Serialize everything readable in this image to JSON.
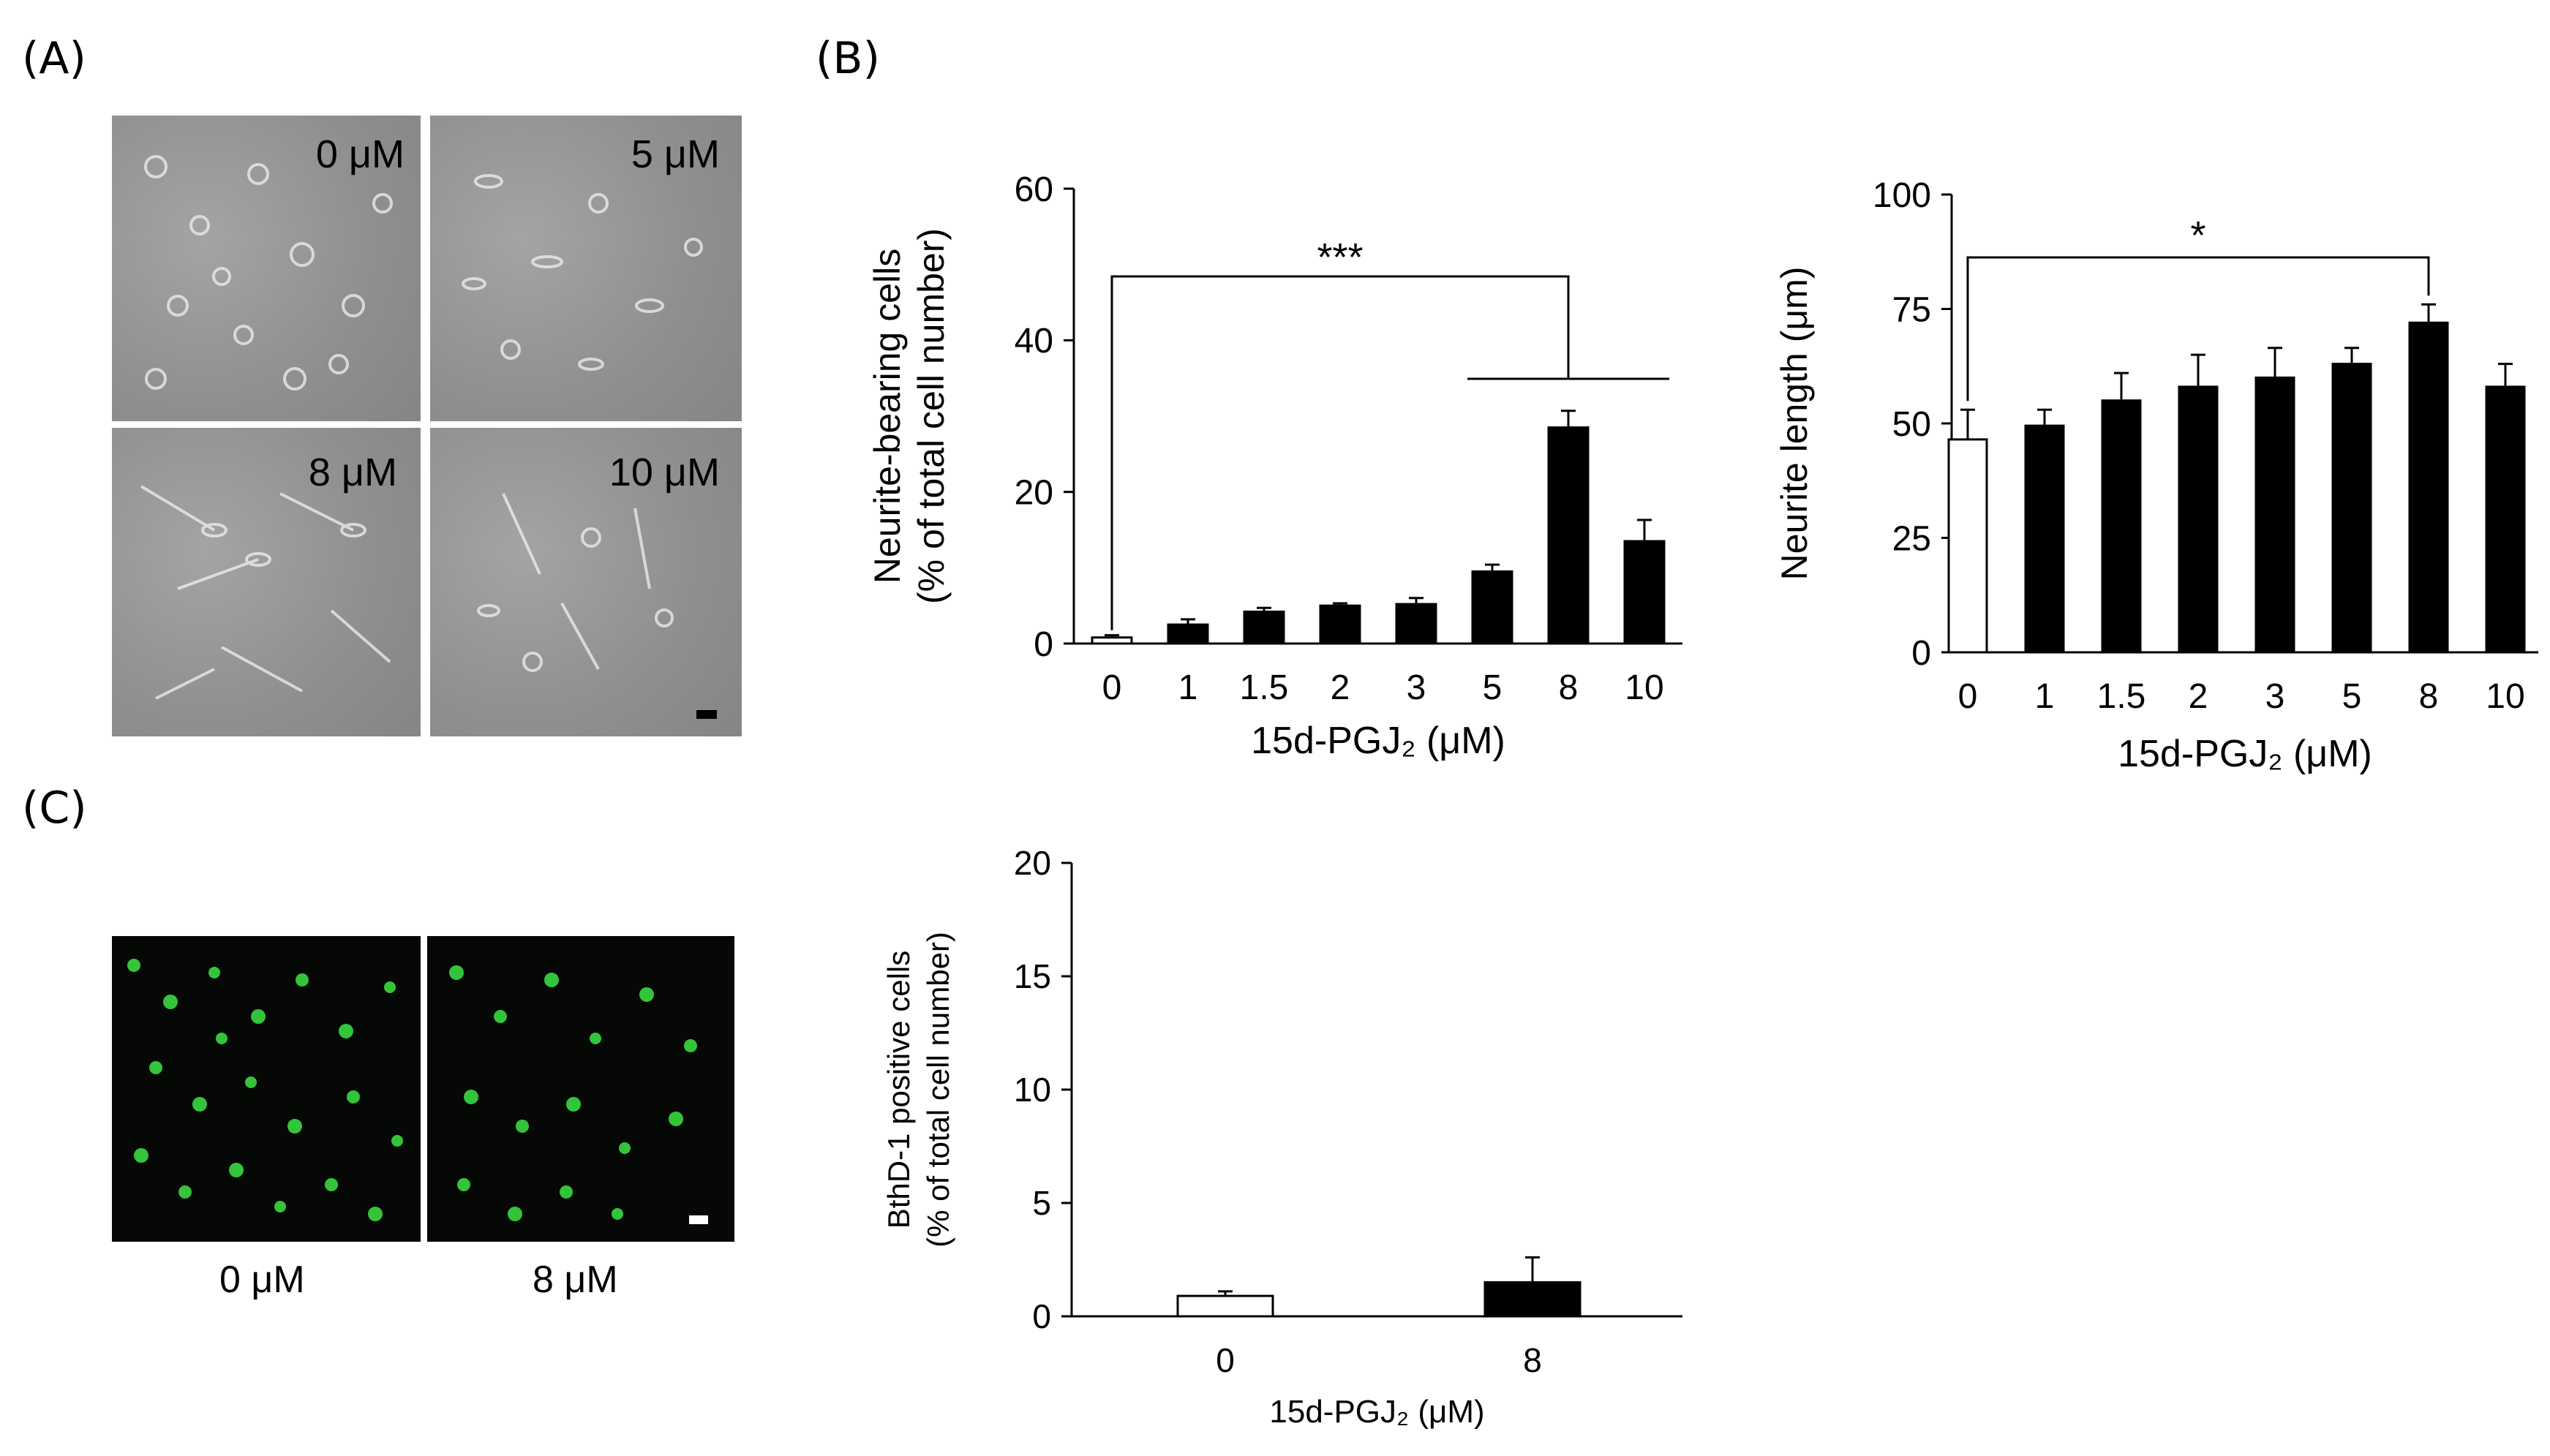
{
  "panels": {
    "a": {
      "label": "(A)",
      "images": [
        {
          "text": "0 μM",
          "style": "gray"
        },
        {
          "text": "5 μM",
          "style": "gray"
        },
        {
          "text": "8 μM",
          "style": "gray"
        },
        {
          "text": "10 μM",
          "style": "gray"
        }
      ]
    },
    "b": {
      "label": "(B)"
    },
    "c": {
      "label": "(C)",
      "images": [
        {
          "caption": "0 μM",
          "style": "dark"
        },
        {
          "caption": "8 μM",
          "style": "dark"
        }
      ]
    }
  },
  "chart_data": [
    {
      "type": "bar",
      "ylabel": [
        "Neurite-bearing cells",
        "(% of total cell number)"
      ],
      "xlabel": "15d-PGJ₂ (μM)",
      "categories": [
        "0",
        "1",
        "1.5",
        "2",
        "3",
        "5",
        "8",
        "10"
      ],
      "values": [
        0.8,
        2.5,
        4.2,
        5.0,
        5.2,
        9.5,
        28.5,
        13.5
      ],
      "errors": [
        0.3,
        0.7,
        0.5,
        0.3,
        0.8,
        0.9,
        2.2,
        2.8
      ],
      "bar_colors": [
        "#ffffff",
        "#000000",
        "#000000",
        "#000000",
        "#000000",
        "#000000",
        "#000000",
        "#000000"
      ],
      "ylim": [
        0,
        60
      ],
      "yticks": [
        0,
        20,
        40,
        60
      ],
      "annotation": "***"
    },
    {
      "type": "bar",
      "ylabel": [
        "Neurite length (μm)"
      ],
      "xlabel": "15d-PGJ₂ (μM)",
      "categories": [
        "0",
        "1",
        "1.5",
        "2",
        "3",
        "5",
        "8",
        "10"
      ],
      "values": [
        46.5,
        49.5,
        55,
        58,
        60,
        63,
        72,
        58
      ],
      "errors": [
        6.5,
        3.5,
        6,
        7,
        6.5,
        3.5,
        4,
        5
      ],
      "bar_colors": [
        "#ffffff",
        "#000000",
        "#000000",
        "#000000",
        "#000000",
        "#000000",
        "#000000",
        "#000000"
      ],
      "ylim": [
        0,
        100
      ],
      "yticks": [
        0,
        25,
        50,
        75,
        100
      ],
      "annotation": "*"
    },
    {
      "type": "bar",
      "ylabel": [
        "BthD-1  positive  cells",
        "(% of total  cell number)"
      ],
      "xlabel": "15d-PGJ₂ (μM)",
      "categories": [
        "0",
        "8"
      ],
      "values": [
        0.9,
        1.5
      ],
      "errors": [
        0.2,
        1.1
      ],
      "bar_colors": [
        "#ffffff",
        "#000000"
      ],
      "ylim": [
        0,
        20
      ],
      "yticks": [
        0,
        5,
        10,
        15,
        20
      ]
    }
  ]
}
